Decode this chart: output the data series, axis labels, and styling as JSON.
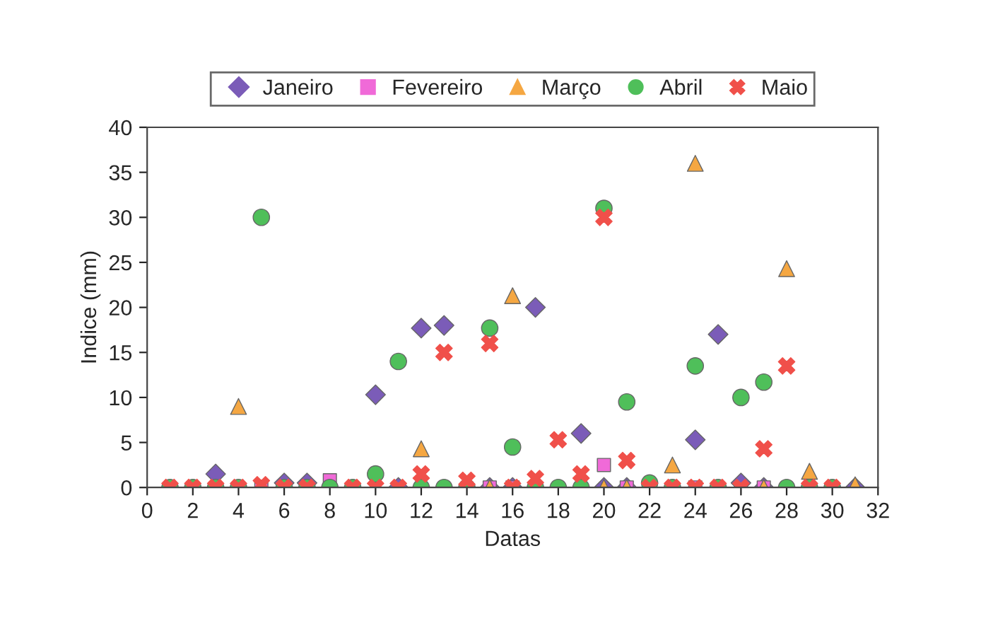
{
  "chart_data": {
    "type": "scatter",
    "xlabel": "Datas",
    "ylabel": "Indice (mm)",
    "xlim": [
      0,
      32
    ],
    "ylim": [
      0,
      40
    ],
    "xticks": [
      0,
      2,
      4,
      6,
      8,
      10,
      12,
      14,
      16,
      18,
      20,
      22,
      24,
      26,
      28,
      30,
      32
    ],
    "yticks": [
      0,
      5,
      10,
      15,
      20,
      25,
      30,
      35,
      40
    ],
    "grid": false,
    "legend": "top",
    "x": [
      1,
      2,
      3,
      4,
      5,
      6,
      7,
      8,
      9,
      10,
      11,
      12,
      13,
      14,
      15,
      16,
      17,
      18,
      19,
      20,
      21,
      22,
      23,
      24,
      25,
      26,
      27,
      28,
      29,
      30,
      31
    ],
    "series": [
      {
        "name": "Janeiro",
        "color": "#7b5cb8",
        "marker": "diamond",
        "values": [
          null,
          null,
          1.5,
          null,
          null,
          0.5,
          0.5,
          null,
          null,
          10.3,
          0,
          17.7,
          18,
          null,
          0,
          0,
          20,
          null,
          6,
          0,
          0,
          null,
          null,
          5.3,
          17,
          0.5,
          0,
          null,
          null,
          null,
          0
        ]
      },
      {
        "name": "Fevereiro",
        "color": "#f06ad8",
        "marker": "square",
        "values": [
          null,
          null,
          null,
          null,
          0,
          null,
          null,
          0.8,
          null,
          null,
          null,
          null,
          null,
          null,
          0,
          0,
          null,
          null,
          null,
          2.5,
          0,
          null,
          null,
          0,
          null,
          null,
          0,
          null,
          null,
          null,
          null
        ]
      },
      {
        "name": "Março",
        "color": "#f5a742",
        "marker": "triangle",
        "values": [
          null,
          null,
          null,
          9,
          null,
          null,
          null,
          null,
          null,
          null,
          null,
          4.3,
          null,
          null,
          0,
          21.3,
          null,
          null,
          null,
          0,
          0,
          null,
          2.5,
          36,
          null,
          null,
          0,
          24.3,
          1.8,
          null,
          0.3
        ]
      },
      {
        "name": "Abril",
        "color": "#4fbf5a",
        "marker": "circle",
        "x": [
          1,
          2,
          3,
          4,
          5,
          6,
          7,
          8,
          9,
          10,
          11,
          12,
          13,
          14,
          15,
          16,
          17,
          18,
          19,
          20,
          21,
          22,
          23,
          24,
          25,
          26,
          27,
          28,
          29,
          30
        ],
        "values": [
          0,
          0,
          0,
          0,
          30,
          0,
          0,
          0,
          0,
          1.5,
          14,
          0,
          0,
          0,
          17.7,
          4.5,
          0,
          0,
          0,
          31,
          9.5,
          0.5,
          0,
          13.5,
          0,
          10,
          11.7,
          0,
          0,
          0
        ]
      },
      {
        "name": "Maio",
        "color": "#f0504a",
        "marker": "cross",
        "values": [
          0,
          0,
          0,
          0,
          0.3,
          0,
          0,
          null,
          0,
          0,
          0,
          1.5,
          15,
          0.8,
          16,
          0,
          1,
          5.3,
          1.5,
          30,
          3,
          0,
          0,
          0,
          0,
          0,
          4.3,
          13.5,
          0,
          0,
          null
        ]
      }
    ]
  }
}
